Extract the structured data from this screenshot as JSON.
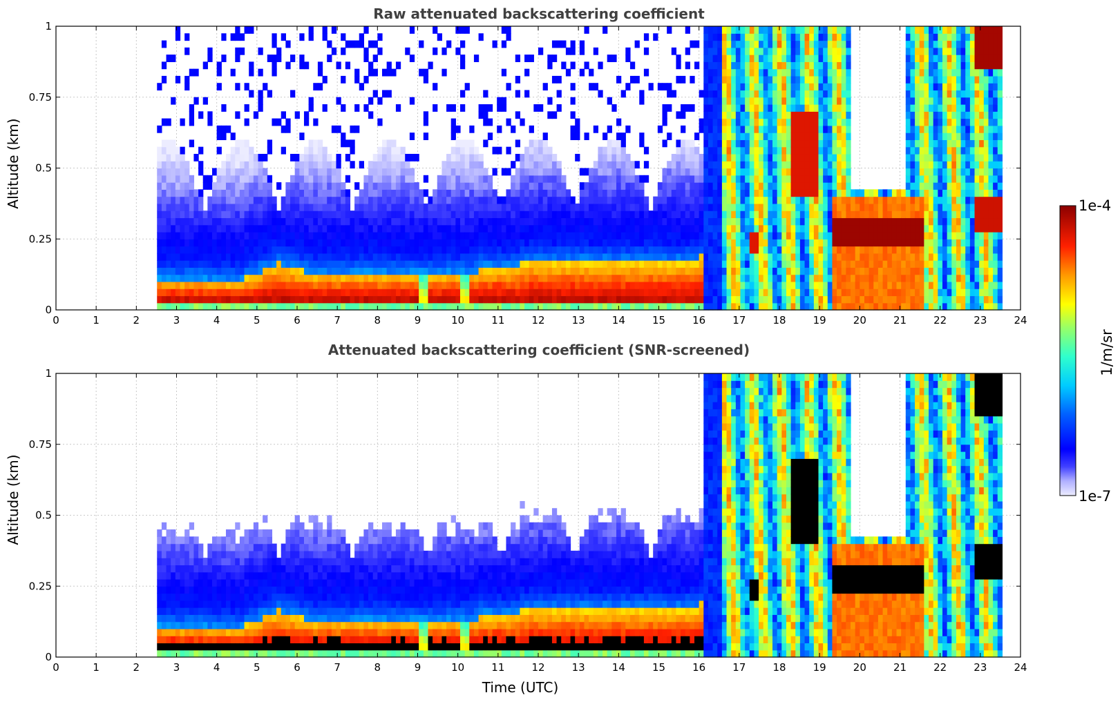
{
  "chart_data": [
    {
      "type": "heatmap",
      "title": "Raw attenuated backscattering coefficient",
      "xlabel": "",
      "ylabel": "Altitude (km)",
      "xlim": [
        0,
        24
      ],
      "ylim": [
        0,
        1
      ],
      "xticks": [
        0,
        1,
        2,
        3,
        4,
        5,
        6,
        7,
        8,
        9,
        10,
        11,
        12,
        13,
        14,
        15,
        16,
        17,
        18,
        19,
        20,
        21,
        22,
        23,
        24
      ],
      "yticks": [
        0,
        0.25,
        0.5,
        0.75,
        1
      ],
      "ytick_labels": [
        "0",
        "0.25",
        "0.5",
        "0.75",
        "1"
      ],
      "grid": true,
      "data_time_range": [
        2.55,
        23.55
      ],
      "colormap": "jet",
      "color_scale": "log"
    },
    {
      "type": "heatmap",
      "title": "Attenuated backscattering coefficient (SNR-screened)",
      "xlabel": "Time (UTC)",
      "ylabel": "Altitude (km)",
      "xlim": [
        0,
        24
      ],
      "ylim": [
        0,
        1
      ],
      "xticks": [
        0,
        1,
        2,
        3,
        4,
        5,
        6,
        7,
        8,
        9,
        10,
        11,
        12,
        13,
        14,
        15,
        16,
        17,
        18,
        19,
        20,
        21,
        22,
        23,
        24
      ],
      "yticks": [
        0,
        0.25,
        0.5,
        0.75,
        1
      ],
      "ytick_labels": [
        "0",
        "0.25",
        "0.5",
        "0.75",
        "1"
      ],
      "grid": true,
      "data_time_range": [
        2.55,
        23.55
      ],
      "colormap": "jet",
      "color_scale": "log",
      "masked_color": "#000000"
    }
  ],
  "colorbar": {
    "label": "1/m/sr",
    "max_label": "1e-4",
    "min_label": "1e-7",
    "min": 1e-07,
    "max": 0.0001,
    "scale": "log"
  }
}
